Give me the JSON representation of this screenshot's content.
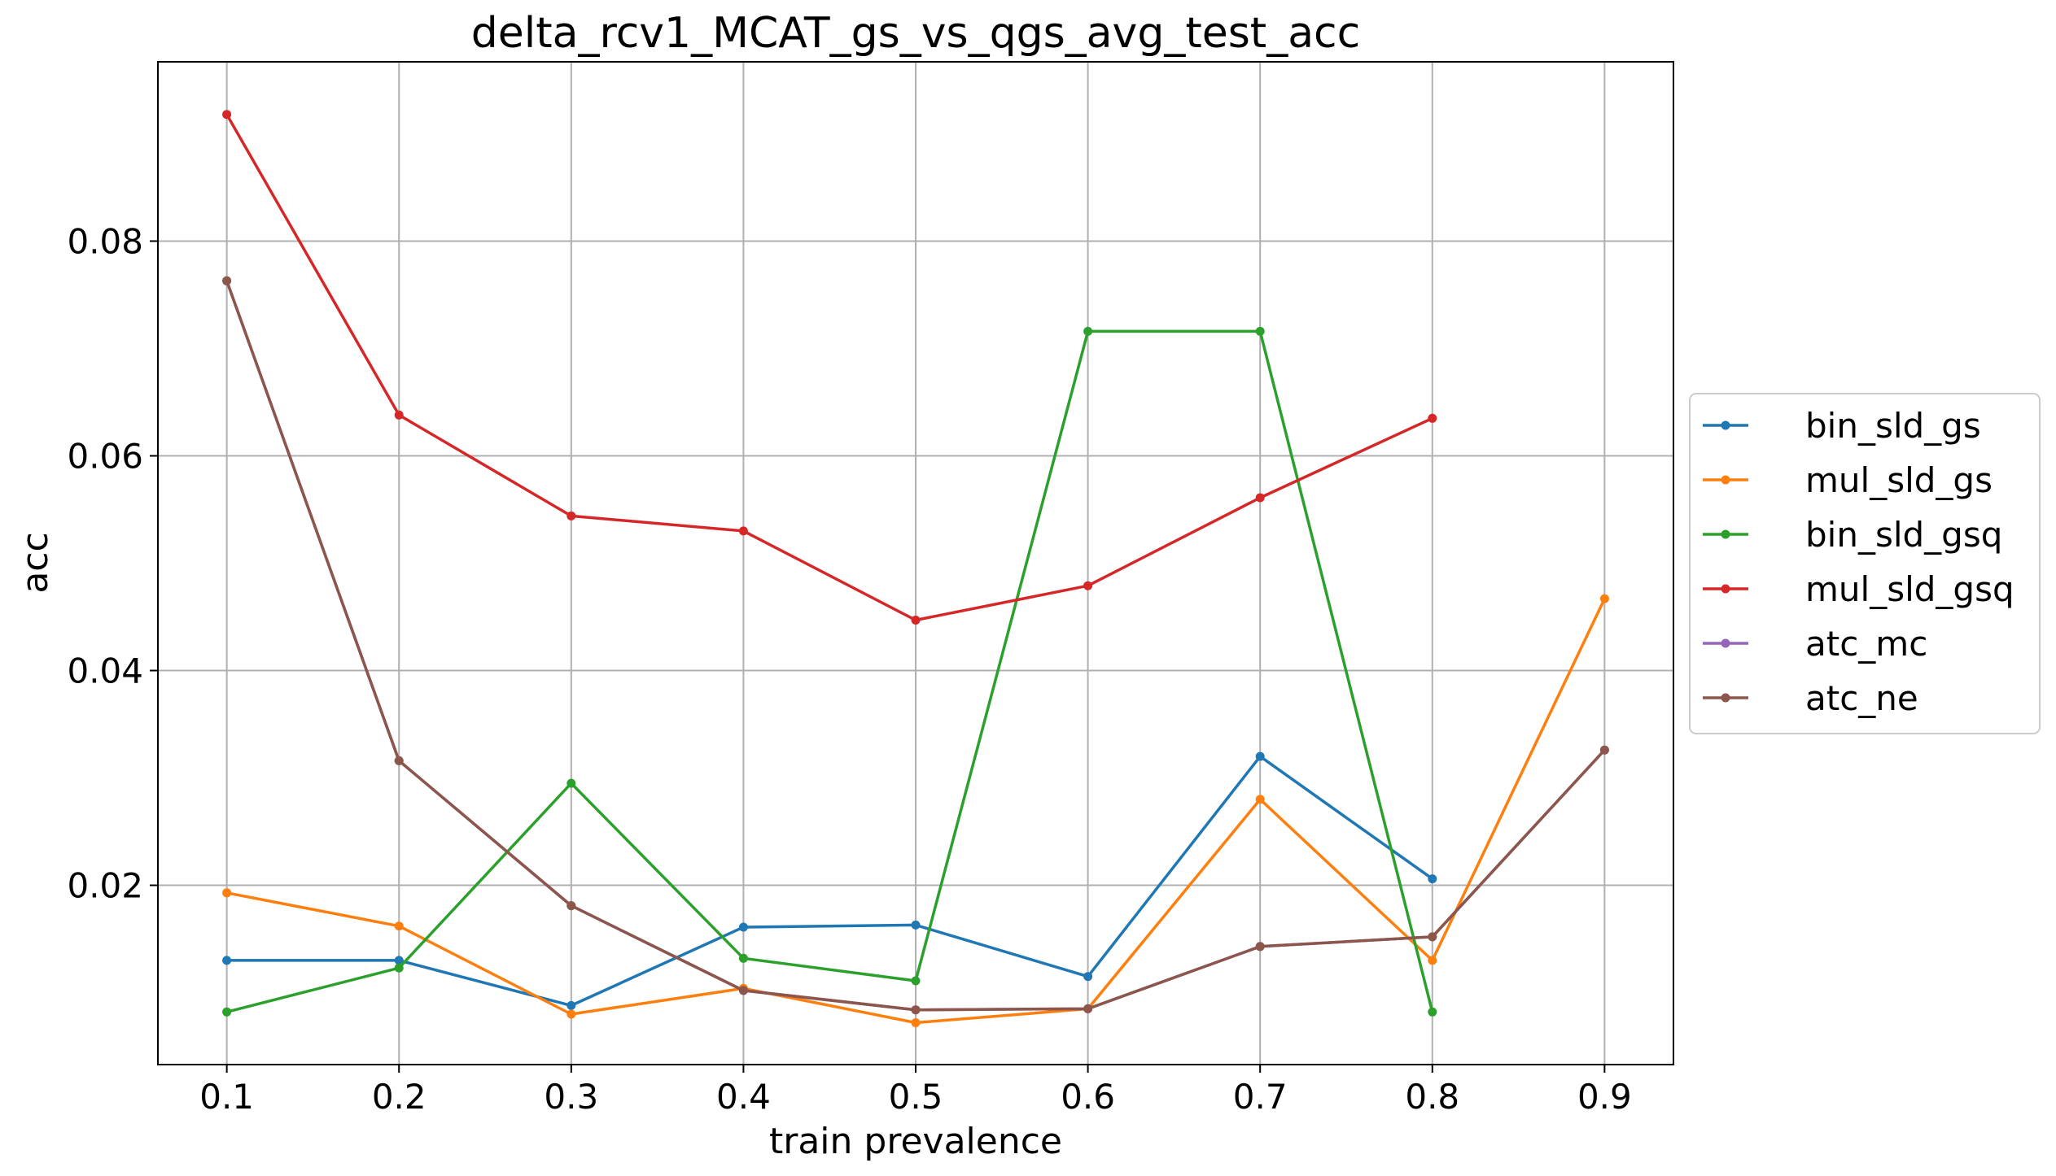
{
  "chart_data": {
    "type": "line",
    "title": "delta_rcv1_MCAT_gs_vs_qgs_avg_test_acc",
    "xlabel": "train prevalence",
    "ylabel": "acc",
    "x": [
      0.1,
      0.2,
      0.3,
      0.4,
      0.5,
      0.6,
      0.7,
      0.8,
      0.9
    ],
    "x_ticks": [
      "0.1",
      "0.2",
      "0.3",
      "0.4",
      "0.5",
      "0.6",
      "0.7",
      "0.8",
      "0.9"
    ],
    "y_ticks": [
      "0.02",
      "0.04",
      "0.06",
      "0.08"
    ],
    "y_tick_values": [
      0.02,
      0.04,
      0.06,
      0.08
    ],
    "xlim": [
      0.06,
      0.94
    ],
    "ylim": [
      0.0033,
      0.0967
    ],
    "grid": true,
    "legend_position": "right, outside plot area",
    "series": [
      {
        "name": "bin_sld_gs",
        "color": "#1f77b4",
        "values": [
          0.013,
          0.013,
          0.0088,
          0.0161,
          0.0163,
          0.0115,
          0.032,
          0.0206,
          null
        ]
      },
      {
        "name": "mul_sld_gs",
        "color": "#ff7f0e",
        "values": [
          0.0193,
          0.0162,
          0.008,
          0.0104,
          0.0072,
          0.0085,
          0.028,
          0.013,
          0.0467
        ]
      },
      {
        "name": "bin_sld_gsq",
        "color": "#2ca02c",
        "values": [
          0.0082,
          0.0123,
          0.0295,
          0.0132,
          0.0111,
          0.0716,
          0.0716,
          0.0082,
          null
        ]
      },
      {
        "name": "mul_sld_gsq",
        "color": "#d62728",
        "values": [
          0.0918,
          0.0638,
          0.0544,
          0.053,
          0.0447,
          0.0479,
          0.0561,
          0.0635,
          null
        ]
      },
      {
        "name": "atc_mc",
        "color": "#9467bd",
        "values": [
          0.0763,
          0.0316,
          0.0181,
          0.0102,
          0.0084,
          0.0085,
          0.0143,
          0.0152,
          0.0326
        ]
      },
      {
        "name": "atc_ne",
        "color": "#8c564b",
        "values": [
          0.0763,
          0.0316,
          0.0181,
          0.0102,
          0.0084,
          0.0085,
          0.0143,
          0.0152,
          0.0326
        ]
      }
    ]
  }
}
